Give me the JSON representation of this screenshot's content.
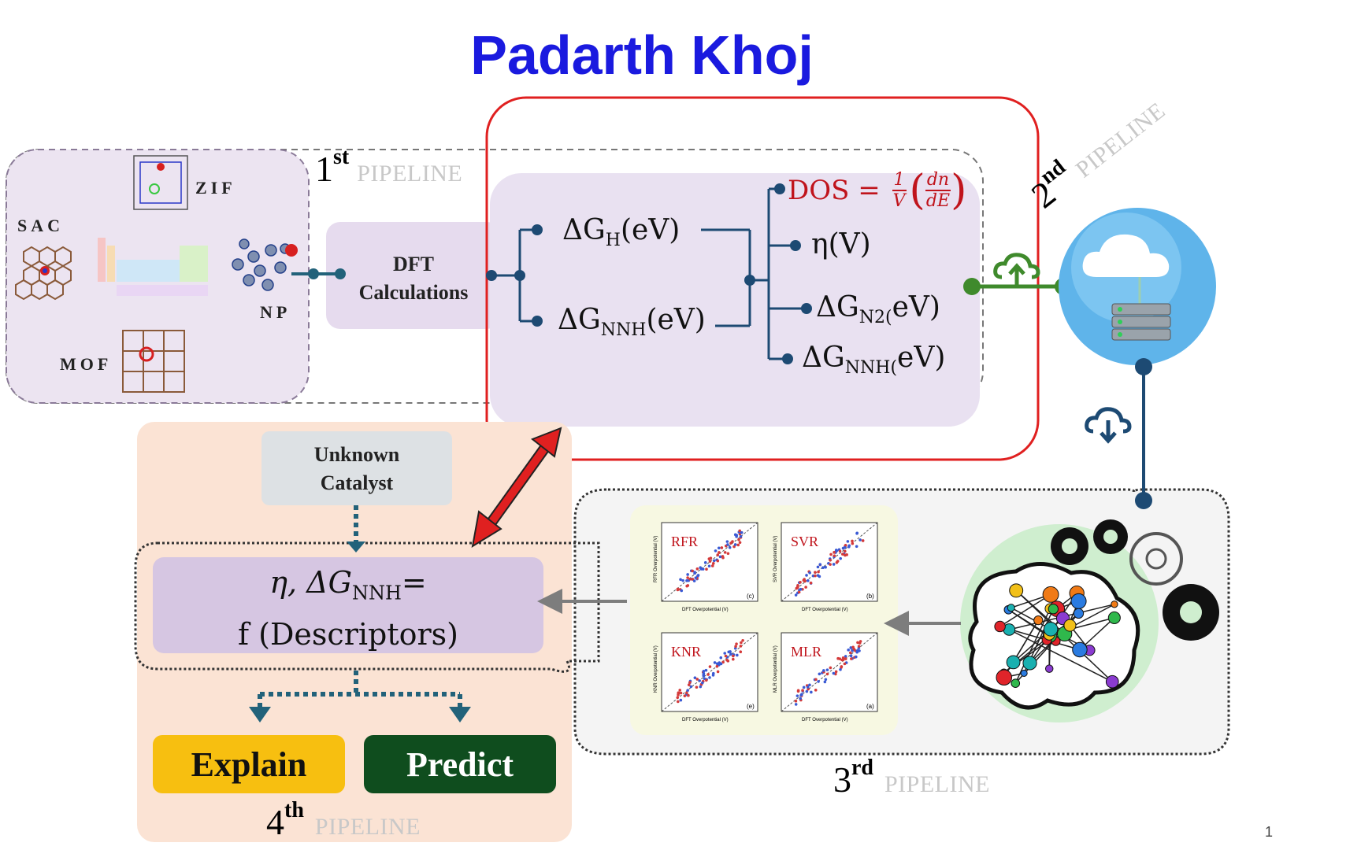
{
  "title": "Padarth Khoj",
  "pipelines": {
    "first": {
      "ordinal": "1",
      "suffix": "st",
      "label": "PIPELINE"
    },
    "second": {
      "ordinal": "2",
      "suffix": "nd",
      "label": "PIPELINE"
    },
    "third": {
      "ordinal": "3",
      "suffix": "rd",
      "label": "PIPELINE"
    },
    "fourth": {
      "ordinal": "4",
      "suffix": "th",
      "label": "PIPELINE"
    }
  },
  "materials": {
    "sac": "SAC",
    "zif": "ZIF",
    "np": "NP",
    "mof": "MOF"
  },
  "dft": {
    "line1": "DFT",
    "line2": "Calculations"
  },
  "energies": {
    "gh": {
      "main": "ΔG",
      "sub": "H",
      "rest": "(eV)"
    },
    "gnnh": {
      "main": "ΔG",
      "sub": "NNH",
      "rest": "(eV)"
    }
  },
  "descriptors": {
    "dos": {
      "lhs": "DOS = ",
      "frac_num": "1",
      "frac_den": "V",
      "inner_num": "dn",
      "inner_den": "dE"
    },
    "eta": "η(V)",
    "gn2": {
      "main": "ΔG",
      "sub": "N2(",
      "rest": "eV)"
    },
    "gnnh": {
      "main": "ΔG",
      "sub": "NNH(",
      "rest": "eV)"
    }
  },
  "unknown": {
    "line1": "Unknown",
    "line2": "Catalyst"
  },
  "function": {
    "line1_pre": "η, ΔG",
    "line1_sub": "NNH",
    "line1_post": "=",
    "line2": "f (Descriptors)"
  },
  "models": [
    {
      "name": "RFR",
      "x_label": "DFT Overpotential (V)",
      "y_label": "RFR Overpotential (V)",
      "panel": "(c)"
    },
    {
      "name": "SVR",
      "x_label": "DFT Overpotential (V)",
      "y_label": "SVR Overpotential (V)",
      "panel": "(b)"
    },
    {
      "name": "KNR",
      "x_label": "DFT Overpotential (V)",
      "y_label": "KNR Overpotential (V)",
      "panel": "(e)"
    },
    {
      "name": "MLR",
      "x_label": "DFT Overpotential (V)",
      "y_label": "MLR Overpotential (V)",
      "panel": "(a)"
    }
  ],
  "actions": {
    "explain": "Explain",
    "predict": "Predict"
  },
  "page_number": "1",
  "colors": {
    "title": "#1a1adf",
    "highlight_box": "#e02020",
    "connector": "#1d4a73",
    "teal": "#22627a",
    "green": "#3f8a2c",
    "panel_purple": "#ece6f2",
    "function_box": "#d6c6e2",
    "fourth_bg": "#fbe3d4",
    "explain": "#f7bf10",
    "predict": "#0f4d1e"
  }
}
